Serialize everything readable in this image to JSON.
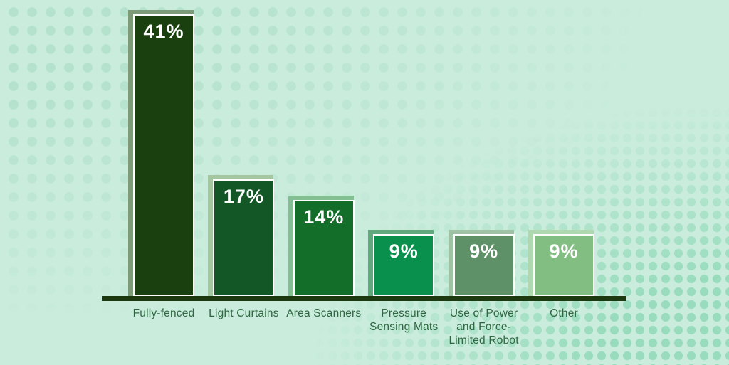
{
  "chart_data": {
    "type": "bar",
    "title": "",
    "xlabel": "",
    "ylabel": "",
    "legend": false,
    "grid": false,
    "categories": [
      "Fully-fenced",
      "Light Curtains",
      "Area Scanners",
      "Pressure Sensing Mats",
      "Use of Power and Force-Limited Robot",
      "Other"
    ],
    "values": [
      41,
      17,
      14,
      9,
      9,
      9
    ],
    "value_labels": [
      "41%",
      "17%",
      "14%",
      "9%",
      "9%",
      "9%"
    ],
    "unit": "%",
    "ylim": [
      0,
      41
    ],
    "bar_colors": [
      "#1a400f",
      "#145727",
      "#136e29",
      "#08904c",
      "#5e9168",
      "#82bd82"
    ],
    "bar_shadow_colors": [
      "#7e9b79",
      "#a4c7a2",
      "#83bf92",
      "#5fa97c",
      "#9ec2a3",
      "#b0d8b0"
    ],
    "axis_color": "#1d3a0e",
    "category_label_color": "#2e6740",
    "value_label_color": "#ffffff",
    "background_color": "#c9ecdc",
    "dot_color_top_left": "#b5e2cd",
    "dot_color_bottom_right": "#99dcbd"
  }
}
